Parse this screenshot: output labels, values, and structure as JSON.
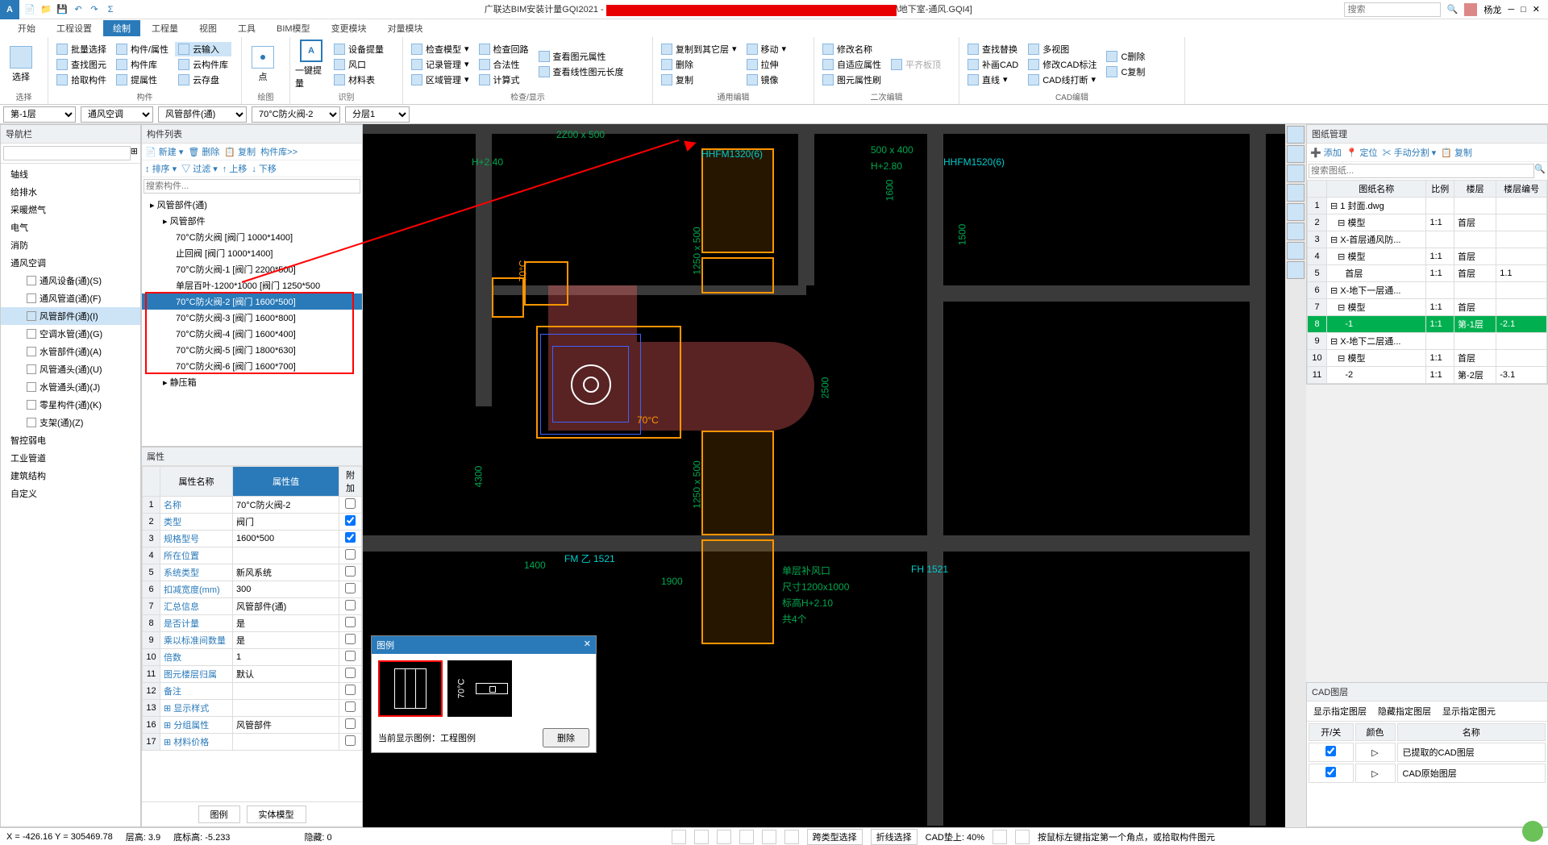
{
  "app": {
    "title_left": "广联达BIM安装计量GQI2021 - ",
    "title_right": "\\地下室-通风.GQI4]",
    "search_placeholder": "搜索",
    "user": "杨龙"
  },
  "menu": {
    "items": [
      "开始",
      "工程设置",
      "绘制",
      "工程量",
      "视图",
      "工具",
      "BIM模型",
      "变更模块",
      "对量模块"
    ],
    "active": 2
  },
  "ribbon": {
    "groups": [
      {
        "label": "选择",
        "large": "选择",
        "cols": [
          [
            "批量选择",
            "查找图元",
            "拾取构件"
          ],
          [
            "构件/属性",
            "构件库",
            "提属性"
          ],
          [
            "云输入",
            "云构件库",
            "云存盘"
          ]
        ]
      },
      {
        "label": "构件",
        "large": "",
        "cols": []
      },
      {
        "label": "绘图",
        "large": "点",
        "cols": []
      },
      {
        "label": "识别",
        "large": "一键提量",
        "cols": [
          [
            "设备提量",
            "风口",
            "材料表"
          ]
        ]
      },
      {
        "label": "检查/显示",
        "cols": [
          [
            "检查模型",
            "记录管理",
            "区域管理"
          ],
          [
            "检查回路",
            "合法性",
            "计算式"
          ],
          [
            "查看图元属性",
            "查看线性图元长度",
            ""
          ]
        ]
      },
      {
        "label": "通用编辑",
        "cols": [
          [
            "复制到其它层",
            "删除",
            "复制"
          ],
          [
            "移动",
            "拉伸",
            "镜像"
          ]
        ]
      },
      {
        "label": "二次编辑",
        "cols": [
          [
            "修改名称",
            "自适应属性",
            "图元属性刷"
          ],
          [
            "平齐板顶",
            "",
            ""
          ]
        ]
      },
      {
        "label": "",
        "cols": [
          [
            "查找替换",
            "补画CAD",
            "直线"
          ],
          [
            "多视图",
            "修改CAD标注",
            "CAD线打断"
          ],
          [
            "C删除",
            "C复制",
            ""
          ]
        ]
      },
      {
        "label": "CAD编辑",
        "cols": []
      }
    ]
  },
  "selectors": {
    "floor": "第-1层",
    "system": "通风空调",
    "type": "风管部件(通)",
    "component": "70°C防火阀-2",
    "layer": "分层1"
  },
  "nav": {
    "title": "导航栏",
    "items": [
      {
        "label": "轴线",
        "level": 1
      },
      {
        "label": "给排水",
        "level": 1
      },
      {
        "label": "采暖燃气",
        "level": 1
      },
      {
        "label": "电气",
        "level": 1
      },
      {
        "label": "消防",
        "level": 1
      },
      {
        "label": "通风空调",
        "level": 1,
        "expanded": true
      },
      {
        "label": "通风设备(通)(S)",
        "level": 2
      },
      {
        "label": "通风管道(通)(F)",
        "level": 2
      },
      {
        "label": "风管部件(通)(I)",
        "level": 2,
        "active": true
      },
      {
        "label": "空调水管(通)(G)",
        "level": 2
      },
      {
        "label": "水管部件(通)(A)",
        "level": 2
      },
      {
        "label": "风管通头(通)(U)",
        "level": 2
      },
      {
        "label": "水管通头(通)(J)",
        "level": 2
      },
      {
        "label": "零星构件(通)(K)",
        "level": 2
      },
      {
        "label": "支架(通)(Z)",
        "level": 2
      },
      {
        "label": "智控弱电",
        "level": 1
      },
      {
        "label": "工业管道",
        "level": 1
      },
      {
        "label": "建筑结构",
        "level": 1
      },
      {
        "label": "自定义",
        "level": 1
      }
    ]
  },
  "clist": {
    "title": "构件列表",
    "toolbar1": [
      "新建",
      "删除",
      "复制",
      "构件库>>"
    ],
    "toolbar2": [
      "排序",
      "过滤",
      "上移",
      "下移"
    ],
    "search_placeholder": "搜索构件...",
    "tree": [
      {
        "label": "风管部件(通)",
        "level": 1
      },
      {
        "label": "风管部件",
        "level": 2
      },
      {
        "label": "70°C防火阀 [阀门 1000*1400]",
        "level": 3
      },
      {
        "label": "止回阀 [阀门 1000*1400]",
        "level": 3
      },
      {
        "label": "70°C防火阀-1 [阀门 2200*500]",
        "level": 3
      },
      {
        "label": "单层百叶-1200*1000 [阀门 1250*500",
        "level": 3
      },
      {
        "label": "70°C防火阀-2 [阀门 1600*500]",
        "level": 3,
        "selected": true
      },
      {
        "label": "70°C防火阀-3 [阀门 1600*800]",
        "level": 3
      },
      {
        "label": "70°C防火阀-4 [阀门 1600*400]",
        "level": 3
      },
      {
        "label": "70°C防火阀-5 [阀门 1800*630]",
        "level": 3
      },
      {
        "label": "70°C防火阀-6 [阀门 1600*700]",
        "level": 3
      },
      {
        "label": "静压箱",
        "level": 2
      }
    ]
  },
  "props": {
    "title": "属性",
    "headers": [
      "属性名称",
      "属性值",
      "附加"
    ],
    "rows": [
      {
        "n": "1",
        "name": "名称",
        "val": "70°C防火阀-2",
        "chk": ""
      },
      {
        "n": "2",
        "name": "类型",
        "val": "阀门",
        "chk": "✓"
      },
      {
        "n": "3",
        "name": "规格型号",
        "val": "1600*500",
        "chk": "✓"
      },
      {
        "n": "4",
        "name": "所在位置",
        "val": "",
        "chk": ""
      },
      {
        "n": "5",
        "name": "系统类型",
        "val": "新风系统",
        "chk": ""
      },
      {
        "n": "6",
        "name": "扣减宽度(mm)",
        "val": "300",
        "chk": ""
      },
      {
        "n": "7",
        "name": "汇总信息",
        "val": "风管部件(通)",
        "chk": ""
      },
      {
        "n": "8",
        "name": "是否计量",
        "val": "是",
        "chk": ""
      },
      {
        "n": "9",
        "name": "乘以标准间数量",
        "val": "是",
        "chk": ""
      },
      {
        "n": "10",
        "name": "倍数",
        "val": "1",
        "chk": ""
      },
      {
        "n": "11",
        "name": "图元楼层归属",
        "val": "默认",
        "chk": ""
      },
      {
        "n": "12",
        "name": "备注",
        "val": "",
        "chk": ""
      },
      {
        "n": "13",
        "name": "显示样式",
        "val": "",
        "chk": "",
        "collapsed": true
      },
      {
        "n": "16",
        "name": "分组属性",
        "val": "风管部件",
        "chk": "",
        "collapsed": true
      },
      {
        "n": "17",
        "name": "材料价格",
        "val": "",
        "chk": "",
        "collapsed": true
      }
    ],
    "tabs": [
      "图例",
      "实体模型"
    ]
  },
  "legend_popup": {
    "title": "图例",
    "temp": "70°C",
    "footer": "当前显示图例：工程图例",
    "btn": "删除"
  },
  "drawings": {
    "title": "图纸管理",
    "toolbar": [
      "添加",
      "定位",
      "手动分割",
      "复制"
    ],
    "search_placeholder": "搜索图纸...",
    "headers": [
      "",
      "图纸名称",
      "比例",
      "楼层",
      "楼层编号"
    ],
    "rows": [
      {
        "n": "1",
        "name": "1 封面.dwg",
        "scale": "",
        "floor": "",
        "fn": ""
      },
      {
        "n": "2",
        "name": "模型",
        "scale": "1:1",
        "floor": "首层",
        "fn": "",
        "indent": 1
      },
      {
        "n": "3",
        "name": "X-首层通风防...",
        "scale": "",
        "floor": "",
        "fn": ""
      },
      {
        "n": "4",
        "name": "模型",
        "scale": "1:1",
        "floor": "首层",
        "fn": "",
        "indent": 1
      },
      {
        "n": "5",
        "name": "首层",
        "scale": "1:1",
        "floor": "首层",
        "fn": "1.1",
        "indent": 2
      },
      {
        "n": "6",
        "name": "X-地下一层通...",
        "scale": "",
        "floor": "",
        "fn": ""
      },
      {
        "n": "7",
        "name": "模型",
        "scale": "1:1",
        "floor": "首层",
        "fn": "",
        "indent": 1
      },
      {
        "n": "8",
        "name": "-1",
        "scale": "1:1",
        "floor": "第-1层",
        "fn": "-2.1",
        "indent": 2,
        "green": true
      },
      {
        "n": "9",
        "name": "X-地下二层通...",
        "scale": "",
        "floor": "",
        "fn": ""
      },
      {
        "n": "10",
        "name": "模型",
        "scale": "1:1",
        "floor": "首层",
        "fn": "",
        "indent": 1
      },
      {
        "n": "11",
        "name": "-2",
        "scale": "1:1",
        "floor": "第-2层",
        "fn": "-3.1",
        "indent": 2
      }
    ]
  },
  "cadlayer": {
    "title": "CAD图层",
    "tabs": [
      "显示指定图层",
      "隐藏指定图层",
      "显示指定图元"
    ],
    "headers": [
      "开/关",
      "颜色",
      "名称"
    ],
    "rows": [
      {
        "name": "已提取的CAD图层"
      },
      {
        "name": "CAD原始图层"
      }
    ]
  },
  "canvas_labels": {
    "t1": "500 x 400",
    "t2": "H+2.80",
    "t3": "HHFM1520(6)",
    "t4": "1600",
    "t5": "1500",
    "t6": "1250 x 500",
    "t7": "70°C",
    "t8": "2Z00 x 500",
    "t9": "H+2.40",
    "t10": "HHFM1320(6)",
    "t11": "1400",
    "t12": "4300",
    "t13": "FM 乙 1521",
    "t14": "1900",
    "t15": "单层补风口",
    "t16": "尺寸1200x1000",
    "t17": "标高H+2.10",
    "t18": "共4个",
    "t19": "FH 1521",
    "t20": "2500",
    "t21": "70°C",
    "t22": "1250 x 500"
  },
  "status": {
    "coords": "X = -426.16  Y = 305469.78",
    "floor_h": "层高: 3.9",
    "bottom_h": "底标高: -5.233",
    "hidden": "隐藏: 0",
    "btns": [
      "跨类型选择",
      "折线选择"
    ],
    "cad_cover": "CAD垫上: 40%",
    "hint": "按鼠标左键指定第一个角点，或拾取构件图元"
  }
}
